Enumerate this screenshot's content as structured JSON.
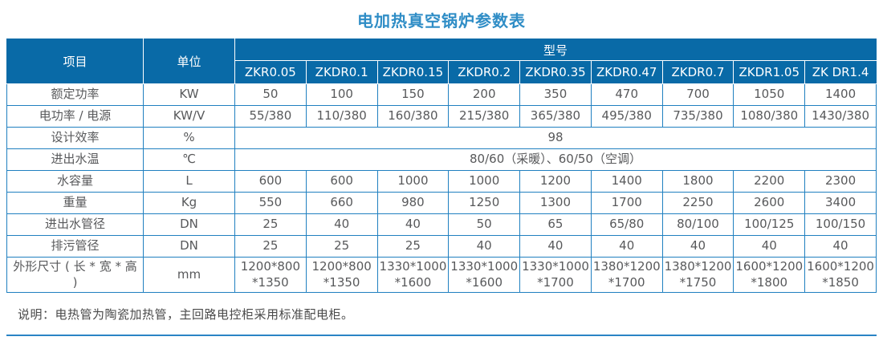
{
  "page": {
    "title": "电加热真空锅炉参数表",
    "note": "说明：电热管为陶瓷加热管，主回路电控柜采用标准配电柜。"
  },
  "table": {
    "header": {
      "item": "项目",
      "unit": "单位",
      "model_group": "型号",
      "models": [
        "ZKR0.05",
        "ZKDR0.1",
        "ZKDR0.15",
        "ZKDR0.2",
        "ZKDR0.35",
        "ZKDR0.47",
        "ZKDR0.7",
        "ZKDR1.05",
        "ZK DR1.4"
      ]
    },
    "rows": [
      {
        "item": "额定功率",
        "unit": "KW",
        "values": [
          "50",
          "100",
          "150",
          "200",
          "350",
          "470",
          "700",
          "1050",
          "1400"
        ]
      },
      {
        "item": "电功率 / 电源",
        "unit": "KW/V",
        "values": [
          "55/380",
          "110/380",
          "160/380",
          "215/380",
          "365/380",
          "495/380",
          "735/380",
          "1080/380",
          "1430/380"
        ]
      },
      {
        "item": "设计效率",
        "unit": "%",
        "merged": "98"
      },
      {
        "item": "进出水温",
        "unit": "℃",
        "merged": "80/60（采暖）、60/50（空调）"
      },
      {
        "item": "水容量",
        "unit": "L",
        "values": [
          "600",
          "600",
          "1000",
          "1000",
          "1200",
          "1400",
          "1800",
          "2200",
          "2300"
        ]
      },
      {
        "item": "重量",
        "unit": "Kg",
        "values": [
          "550",
          "660",
          "980",
          "1250",
          "1300",
          "1700",
          "2250",
          "2600",
          "3400"
        ]
      },
      {
        "item": "进出水管径",
        "unit": "DN",
        "values": [
          "25",
          "40",
          "40",
          "50",
          "65",
          "65/80",
          "80/100",
          "100/125",
          "100/150"
        ]
      },
      {
        "item": "排污管径",
        "unit": "DN",
        "values": [
          "25",
          "25",
          "25",
          "40",
          "40",
          "40",
          "40",
          "40",
          "40"
        ]
      },
      {
        "item": "外形尺寸 ( 长 * 宽 * 高 )",
        "unit": "mm",
        "values": [
          "1200*800\n*1350",
          "1200*800\n*1350",
          "1330*1000\n*1600",
          "1330*1000\n*1600",
          "1330*1000\n*1700",
          "1380*1200\n*1700",
          "1380*1200\n*1750",
          "1600*1200\n*1800",
          "1600*1200\n*1850"
        ]
      }
    ]
  },
  "colors": {
    "title_text": "#2f8dc6",
    "header_bg": "#096aa7",
    "header_text": "#ffffff",
    "table_border": "#2080c0",
    "cell_text": "#58595b",
    "divider": "#2a84c5"
  }
}
